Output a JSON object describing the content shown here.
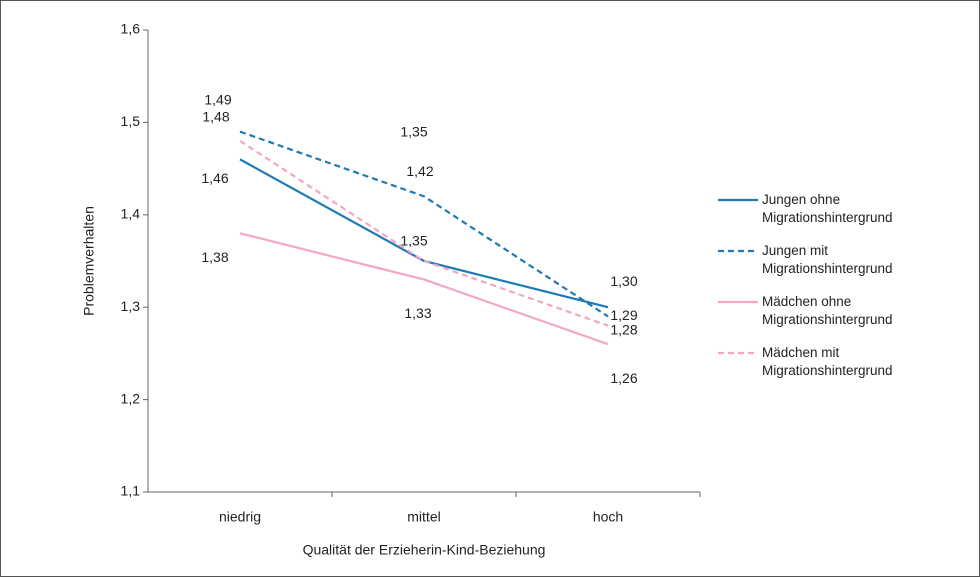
{
  "chart_data": {
    "type": "line",
    "x_label": "Qualität der Erzieherin-Kind-Beziehung",
    "y_label": "Problemverhalten",
    "categories": [
      "niedrig",
      "mittel",
      "hoch"
    ],
    "ylim": [
      1.1,
      1.6
    ],
    "yticks": [
      {
        "value": 1.1,
        "label": "1,1"
      },
      {
        "value": 1.2,
        "label": "1,2"
      },
      {
        "value": 1.3,
        "label": "1,3"
      },
      {
        "value": 1.4,
        "label": "1,4"
      },
      {
        "value": 1.5,
        "label": "1,5"
      },
      {
        "value": 1.6,
        "label": "1,6"
      }
    ],
    "legend_position": "right",
    "series": [
      {
        "name": "Jungen ohne Migrationshintergrund",
        "color": "#1f7ab3",
        "dashed": false,
        "values": [
          1.46,
          1.35,
          1.3
        ],
        "value_labels": [
          "1,46",
          "1,35",
          "1,30"
        ]
      },
      {
        "name": "Jungen mit Migrationshintergrund",
        "color": "#1f7ab3",
        "dashed": true,
        "values": [
          1.49,
          1.42,
          1.29
        ],
        "value_labels": [
          "1,49",
          "1,42",
          "1,29"
        ]
      },
      {
        "name": "Mädchen ohne Migrationshintergrund",
        "color": "#f2a7c8",
        "dashed": false,
        "values": [
          1.38,
          1.33,
          1.26
        ],
        "value_labels": [
          "1,38",
          "1,33",
          "1,26"
        ]
      },
      {
        "name": "Mädchen mit Migrationshintergrund",
        "color": "#f2a7c8",
        "dashed": true,
        "values": [
          1.48,
          1.35,
          1.28
        ],
        "value_labels": [
          "1,48",
          "1,35",
          "1,28"
        ]
      }
    ]
  }
}
